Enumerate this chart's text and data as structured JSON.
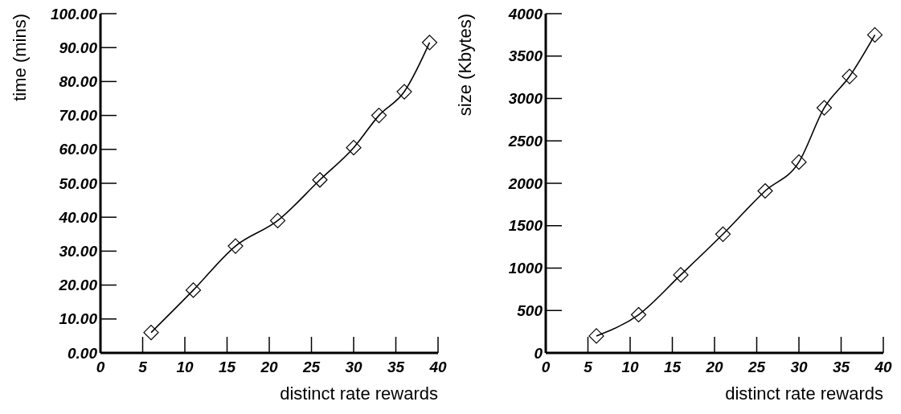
{
  "chart_data": [
    {
      "type": "line",
      "xlabel": "distinct rate rewards",
      "ylabel": "time (mins)",
      "x": [
        6,
        11,
        16,
        21,
        26,
        30,
        33,
        36,
        39
      ],
      "series": [
        {
          "color": "#000000",
          "values": [
            6,
            18.5,
            31.5,
            39,
            51,
            60.5,
            70,
            77,
            91.5
          ]
        }
      ],
      "xlim": [
        0,
        40
      ],
      "xticks": [
        0,
        5,
        10,
        15,
        20,
        25,
        30,
        35,
        40
      ],
      "ylim": [
        0,
        100
      ],
      "yticks": [
        {
          "value": 0,
          "label": "0.00"
        },
        {
          "value": 10,
          "label": "10.00"
        },
        {
          "value": 20,
          "label": "20.00"
        },
        {
          "value": 30,
          "label": "30.00"
        },
        {
          "value": 40,
          "label": "40.00"
        },
        {
          "value": 50,
          "label": "50.00"
        },
        {
          "value": 60,
          "label": "60.00"
        },
        {
          "value": 70,
          "label": "70.00"
        },
        {
          "value": 80,
          "label": "80.00"
        },
        {
          "value": 90,
          "label": "90.00"
        },
        {
          "value": 100,
          "label": "100.00"
        }
      ],
      "marker": "diamond",
      "grid": false
    },
    {
      "type": "line",
      "xlabel": "distinct rate rewards",
      "ylabel": "size (Kbytes)",
      "x": [
        6,
        11,
        16,
        21,
        26,
        30,
        33,
        36,
        39
      ],
      "series": [
        {
          "color": "#000000",
          "values": [
            200,
            450,
            920,
            1400,
            1910,
            2250,
            2890,
            3260,
            3750
          ]
        }
      ],
      "xlim": [
        0,
        40
      ],
      "xticks": [
        0,
        5,
        10,
        15,
        20,
        25,
        30,
        35,
        40
      ],
      "ylim": [
        0,
        4000
      ],
      "yticks": [
        0,
        500,
        1000,
        1500,
        2000,
        2500,
        3000,
        3500,
        4000
      ],
      "marker": "diamond",
      "grid": false
    }
  ]
}
